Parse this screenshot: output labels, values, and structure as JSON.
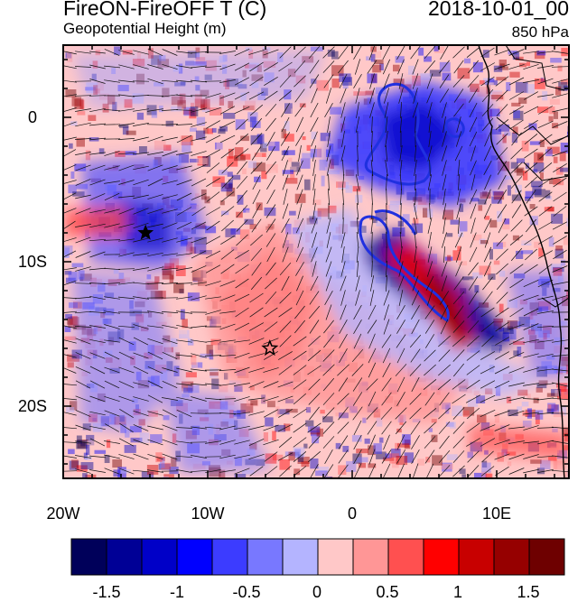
{
  "header": {
    "title": "FireON-FireOFF T (C)",
    "subtitle": "Geopotential Height (m)",
    "date": "2018-10-01_00",
    "level": "850 hPa"
  },
  "map": {
    "lon_range": [
      -20,
      15
    ],
    "lat_range": [
      -25,
      5
    ],
    "x_ticks": [
      {
        "value": -20,
        "label": "20W"
      },
      {
        "value": -10,
        "label": "10W"
      },
      {
        "value": 0,
        "label": "0"
      },
      {
        "value": 10,
        "label": "10E"
      }
    ],
    "y_ticks": [
      {
        "value": 0,
        "label": "0"
      },
      {
        "value": -10,
        "label": "10S"
      },
      {
        "value": -20,
        "label": "20S"
      }
    ],
    "markers": [
      {
        "name": "star-marker-filled",
        "lon": -14.3,
        "lat": -8.0,
        "filled": true
      },
      {
        "name": "star-marker-open",
        "lon": -5.7,
        "lat": -16.0,
        "filled": false
      }
    ]
  },
  "colorbar": {
    "colors": [
      "#00005a",
      "#000096",
      "#0000c8",
      "#0000ff",
      "#3c3cff",
      "#7878ff",
      "#b4b4ff",
      "#ffc8c8",
      "#ff9696",
      "#ff5050",
      "#ff0000",
      "#c80000",
      "#960000",
      "#6e0000"
    ],
    "labels": [
      "-1.5",
      "-1",
      "-0.5",
      "0",
      "0.5",
      "1",
      "1.5"
    ]
  }
}
